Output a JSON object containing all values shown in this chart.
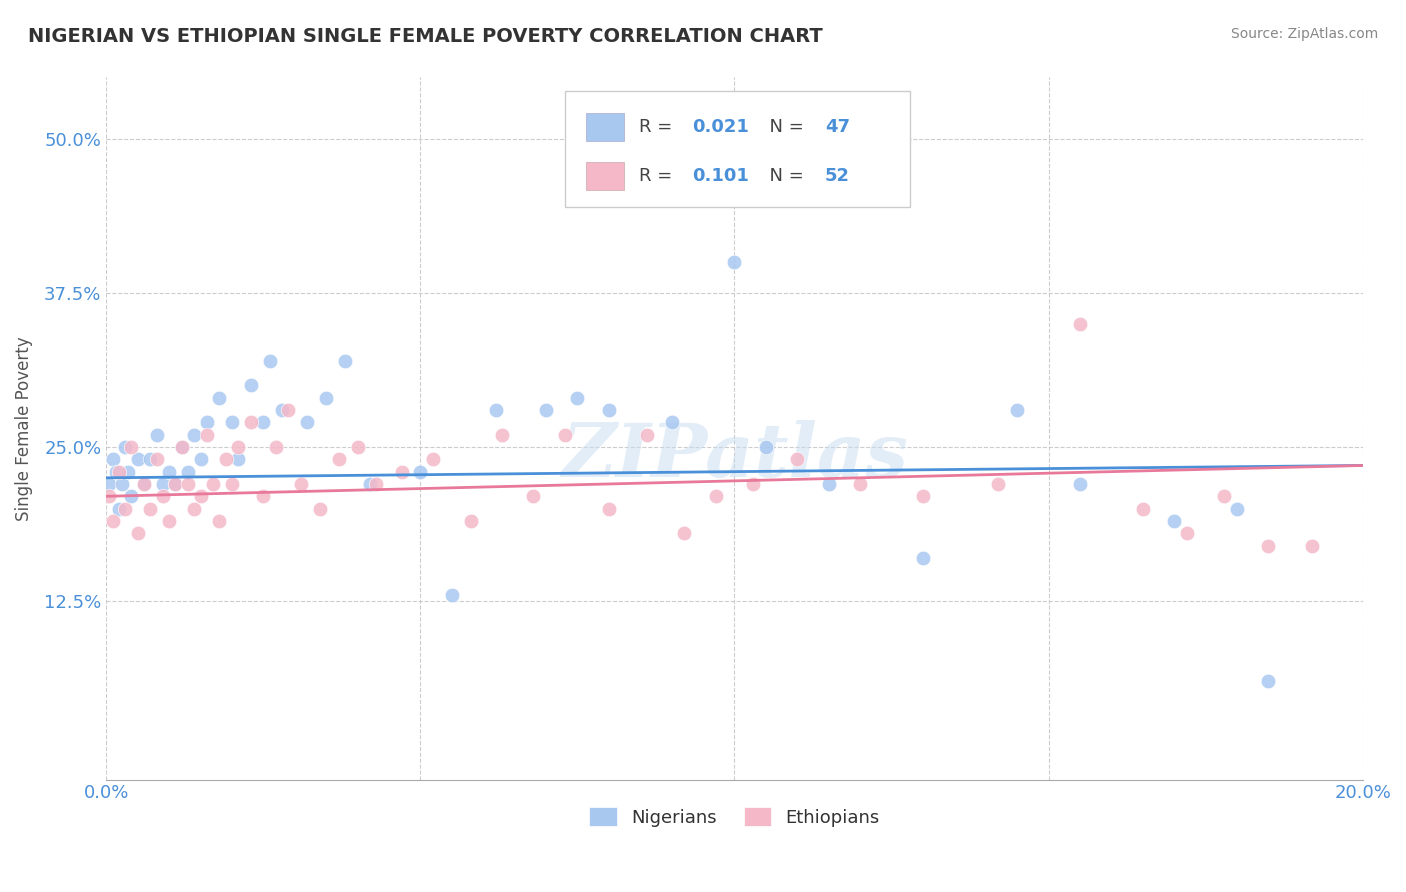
{
  "title": "NIGERIAN VS ETHIOPIAN SINGLE FEMALE POVERTY CORRELATION CHART",
  "source": "Source: ZipAtlas.com",
  "ylabel": "Single Female Poverty",
  "xlim": [
    0.0,
    20.0
  ],
  "ylim": [
    -2.0,
    55.0
  ],
  "xticks": [
    0.0,
    5.0,
    10.0,
    15.0,
    20.0
  ],
  "xticklabels": [
    "0.0%",
    "",
    "",
    "",
    "20.0%"
  ],
  "yticks": [
    0.0,
    12.5,
    25.0,
    37.5,
    50.0
  ],
  "yticklabels": [
    "",
    "12.5%",
    "25.0%",
    "37.5%",
    "50.0%"
  ],
  "nigerian_color": "#A8C8F0",
  "ethiopian_color": "#F4B8C8",
  "nigerian_line_color": "#4A90D9",
  "ethiopian_line_color": "#E8799A",
  "R_nigerian": 0.021,
  "N_nigerian": 47,
  "R_ethiopian": 0.101,
  "N_ethiopian": 52,
  "legend_label_nigerian": "Nigerians",
  "legend_label_ethiopian": "Ethiopians",
  "watermark": "ZIPatlas",
  "background_color": "#ffffff",
  "grid_color": "#CCCCCC",
  "title_color": "#333333",
  "axis_label_color": "#555555",
  "tick_color": "#4A90D9",
  "nigerian_x": [
    0.05,
    0.1,
    0.15,
    0.2,
    0.25,
    0.3,
    0.35,
    0.4,
    0.5,
    0.6,
    0.7,
    0.8,
    0.9,
    1.0,
    1.1,
    1.2,
    1.3,
    1.4,
    1.5,
    1.6,
    1.8,
    2.0,
    2.1,
    2.3,
    2.5,
    2.6,
    2.8,
    3.2,
    3.5,
    3.8,
    4.2,
    5.0,
    5.5,
    6.2,
    7.0,
    7.5,
    8.0,
    9.0,
    10.0,
    10.5,
    11.5,
    13.0,
    14.5,
    15.5,
    17.0,
    18.0,
    18.5
  ],
  "nigerian_y": [
    22,
    24,
    23,
    20,
    22,
    25,
    23,
    21,
    24,
    22,
    24,
    26,
    22,
    23,
    22,
    25,
    23,
    26,
    24,
    27,
    29,
    27,
    24,
    30,
    27,
    32,
    28,
    27,
    29,
    32,
    22,
    23,
    13,
    28,
    28,
    29,
    28,
    27,
    40,
    25,
    22,
    16,
    28,
    22,
    19,
    20,
    6
  ],
  "ethiopian_x": [
    0.05,
    0.1,
    0.2,
    0.3,
    0.4,
    0.5,
    0.6,
    0.7,
    0.8,
    0.9,
    1.0,
    1.1,
    1.2,
    1.3,
    1.4,
    1.5,
    1.6,
    1.7,
    1.8,
    1.9,
    2.0,
    2.1,
    2.3,
    2.5,
    2.7,
    2.9,
    3.1,
    3.4,
    3.7,
    4.0,
    4.3,
    4.7,
    5.2,
    5.8,
    6.3,
    6.8,
    7.3,
    8.0,
    8.6,
    9.2,
    9.7,
    10.3,
    11.0,
    12.0,
    13.0,
    14.2,
    15.5,
    16.5,
    17.2,
    17.8,
    18.5,
    19.2
  ],
  "ethiopian_y": [
    21,
    19,
    23,
    20,
    25,
    18,
    22,
    20,
    24,
    21,
    19,
    22,
    25,
    22,
    20,
    21,
    26,
    22,
    19,
    24,
    22,
    25,
    27,
    21,
    25,
    28,
    22,
    20,
    24,
    25,
    22,
    23,
    24,
    19,
    26,
    21,
    26,
    20,
    26,
    18,
    21,
    22,
    24,
    22,
    21,
    22,
    35,
    20,
    18,
    21,
    17,
    17
  ],
  "nig_line_x": [
    0.0,
    20.0
  ],
  "nig_line_y": [
    22.5,
    23.5
  ],
  "eth_line_x": [
    0.0,
    20.0
  ],
  "eth_line_y": [
    21.0,
    23.5
  ]
}
